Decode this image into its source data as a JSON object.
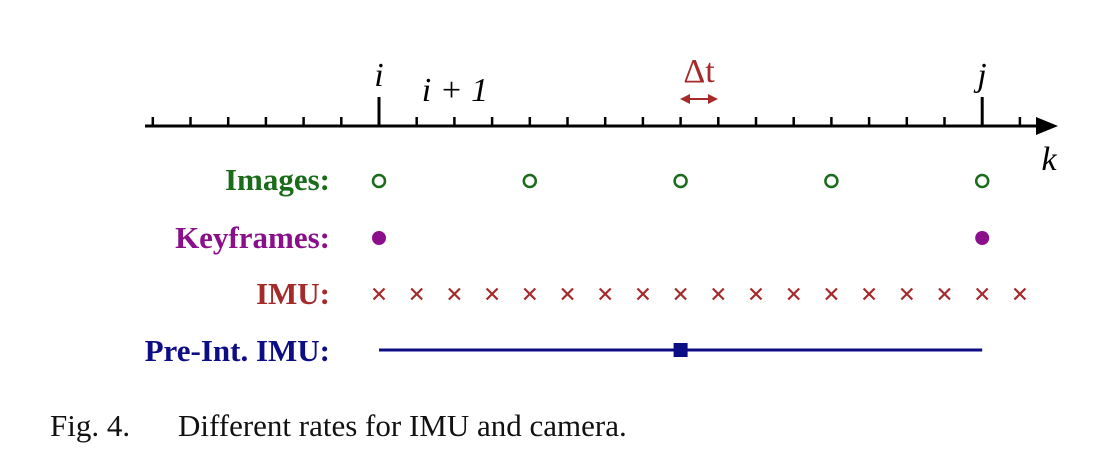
{
  "colors": {
    "axis": "#000000",
    "images": "#1a6b1a",
    "keyframes": "#8b0f8b",
    "imu": "#a52a2a",
    "preint": "#0d0d85",
    "delta": "#a52a2a"
  },
  "axis": {
    "variable": "k",
    "tick_labels": {
      "i": "i",
      "i_plus_1": "i + 1",
      "j": "j"
    },
    "delta_label": "Δt"
  },
  "rows": {
    "images": {
      "label": "Images:",
      "marker": "open-circle",
      "tick_positions": [
        0,
        4,
        8,
        12,
        16
      ]
    },
    "keyframes": {
      "label": "Keyframes:",
      "marker": "filled-circle",
      "tick_positions": [
        0,
        16
      ]
    },
    "imu": {
      "label": "IMU:",
      "marker": "x-cross",
      "tick_positions": [
        0,
        1,
        2,
        3,
        4,
        5,
        6,
        7,
        8,
        9,
        10,
        11,
        12,
        13,
        14,
        15,
        16,
        17
      ]
    },
    "preint": {
      "label": "Pre-Int. IMU:",
      "marker": "line-with-square",
      "span": [
        0,
        16
      ],
      "square_at": 8
    }
  },
  "caption": {
    "number": "Fig. 4.",
    "text": "Different rates for IMU and camera."
  }
}
